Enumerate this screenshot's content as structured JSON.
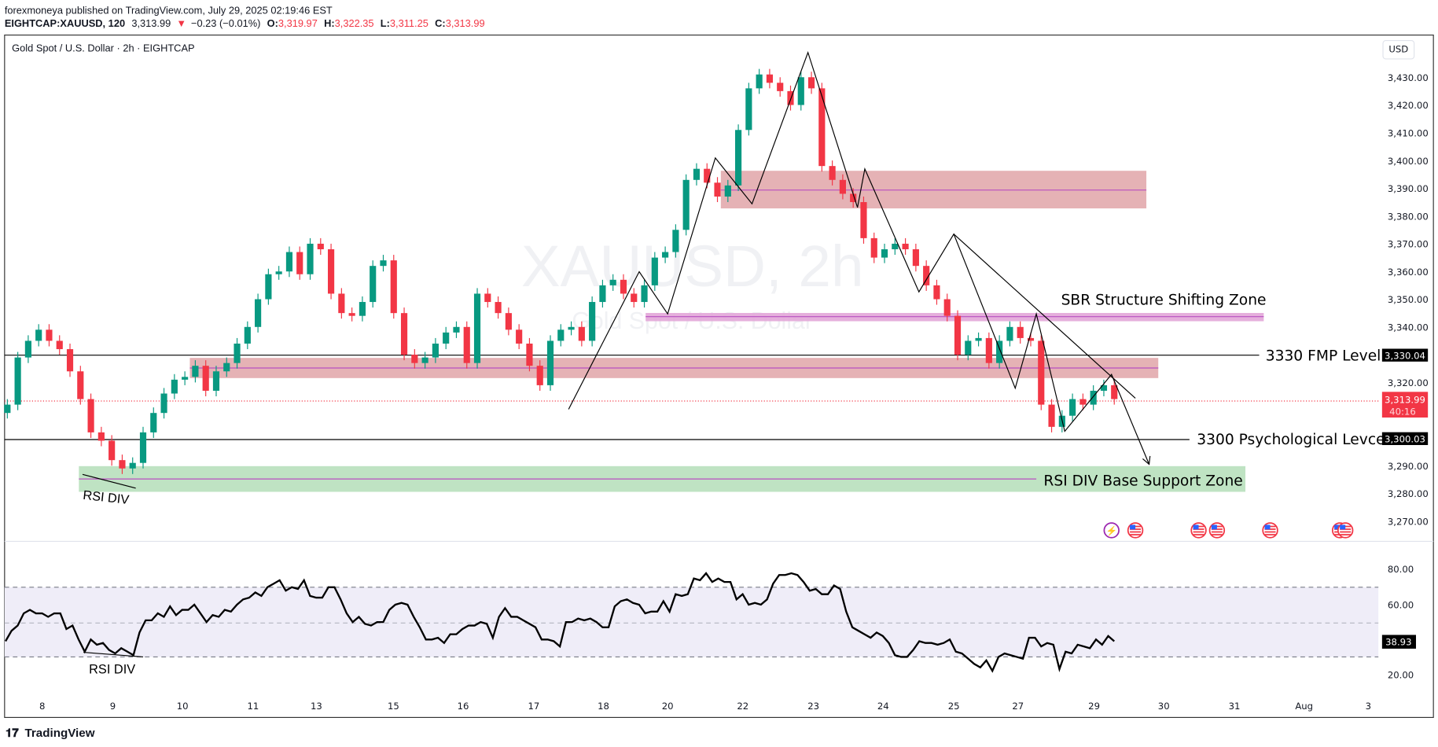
{
  "header": {
    "publisher_line": "forexmoneya published on TradingView.com, July 29, 2025 02:19:46 EST",
    "symbol": "EIGHTCAP:XAUUSD, 120",
    "last": "3,313.99",
    "change": "−0.23 (−0.01%)",
    "o_label": "O:",
    "o": "3,319.97",
    "h_label": "H:",
    "h": "3,322.35",
    "l_label": "L:",
    "l": "3,311.25",
    "c_label": "C:",
    "c": "3,313.99"
  },
  "legend": {
    "title": "Gold Spot / U.S. Dollar · 2h · EIGHTCAP"
  },
  "watermark": {
    "main": "XAUUSD, 2h",
    "sub": "Gold Spot / U.S. Dollar"
  },
  "currency_button": "USD",
  "price_axis": [
    "3,430.00",
    "3,420.00",
    "3,410.00",
    "3,400.00",
    "3,390.00",
    "3,380.00",
    "3,370.00",
    "3,360.00",
    "3,350.00",
    "3,340.00",
    "3,320.00",
    "3,290.00",
    "3,280.00",
    "3,270.00"
  ],
  "price_badges": {
    "fmp": "3,330.04",
    "current": "3,313.99",
    "countdown": "40:16",
    "psych": "3,300.03"
  },
  "rsi_axis": [
    "80.00",
    "60.00",
    "20.00"
  ],
  "rsi_badge": "38.93",
  "time_axis": [
    "8",
    "9",
    "10",
    "11",
    "13",
    "15",
    "16",
    "17",
    "18",
    "20",
    "22",
    "23",
    "24",
    "25",
    "27",
    "29",
    "30",
    "31",
    "Aug",
    "3"
  ],
  "annotations": {
    "sbr": "SBR Structure Shifting Zone",
    "fmp": "3330 FMP Level",
    "psych": "3300 Psychological Levcel",
    "support": "RSI DIV Base Support Zone",
    "rsi_div_price": "RSI DIV",
    "rsi_div_rsi": "RSI DIV"
  },
  "events": [
    "lightning-icon",
    "us-flag-icon",
    "us-flag-icon",
    "us-flag-icon",
    "us-flag-icon",
    "us-flag-icon",
    "us-flag-icon"
  ],
  "footer": {
    "brand": "TradingView"
  },
  "colors": {
    "up": "#089981",
    "down": "#f23645",
    "zone_red": "#e0a5a8",
    "zone_green": "#bfe3c3",
    "zone_purple": "#e2a6d8",
    "rsi_band": "#efedf8"
  },
  "chart_data": [
    {
      "type": "candlestick",
      "title": "Gold Spot / U.S. Dollar · 2h · EIGHTCAP",
      "x_range": [
        "Jul 8",
        "Jul 29"
      ],
      "ylim": [
        3265,
        3440
      ],
      "close": [
        3312,
        3329,
        3335,
        3339,
        3335,
        3332,
        3324,
        3314,
        3302,
        3299,
        3292,
        3289,
        3291,
        3302,
        3309,
        3316,
        3321,
        3322,
        3326,
        3317,
        3324,
        3327,
        3334,
        3340,
        3350,
        3359,
        3360,
        3367,
        3359,
        3370,
        3368,
        3352,
        3345,
        3344,
        3349,
        3362,
        3364,
        3345,
        3330,
        3327,
        3329,
        3334,
        3338,
        3340,
        3327,
        3352,
        3349,
        3345,
        3339,
        3334,
        3326,
        3319,
        3335,
        3339,
        3340,
        3335,
        3349,
        3355,
        3357,
        3352,
        3349,
        3355,
        3365,
        3367,
        3375,
        3393,
        3397,
        3392,
        3387,
        3391,
        3411,
        3426,
        3431,
        3428,
        3425,
        3420,
        3430,
        3426,
        3398,
        3393,
        3388,
        3385,
        3372,
        3365,
        3368,
        3370,
        3368,
        3362,
        3355,
        3350,
        3344,
        3330,
        3335,
        3336,
        3327,
        3335,
        3340,
        3336,
        3335,
        3312,
        3304,
        3308,
        3314,
        3312,
        3317,
        3319,
        3314
      ],
      "levels": [
        {
          "label": "3330 FMP Level",
          "price": 3330.04
        },
        {
          "label": "3300 Psychological Levcel",
          "price": 3300.03
        },
        {
          "label": "current",
          "price": 3313.99
        }
      ],
      "zones": [
        {
          "label": "",
          "from": 3383,
          "to": 3396,
          "color": "#e0a5a8"
        },
        {
          "label": "SBR Structure Shifting Zone",
          "from": 3343,
          "to": 3346,
          "color": "#e2a6d8"
        },
        {
          "label": "",
          "from": 3320,
          "to": 3328,
          "color": "#e0a5a8"
        },
        {
          "label": "RSI DIV Base Support Zone",
          "from": 3281,
          "to": 3290,
          "color": "#bfe3c3"
        }
      ]
    },
    {
      "type": "line",
      "title": "RSI",
      "ylim": [
        10,
        90
      ],
      "bands": [
        30,
        50,
        70
      ],
      "last": 38.93,
      "values": [
        39,
        45,
        48,
        55,
        57,
        55,
        55,
        53,
        55,
        55,
        46,
        48,
        40,
        33,
        40,
        37,
        38,
        34,
        32,
        35,
        33,
        31,
        44,
        51,
        51,
        55,
        53,
        59,
        54,
        57,
        57,
        60,
        55,
        50,
        54,
        53,
        57,
        56,
        60,
        63,
        64,
        67,
        65,
        70,
        72,
        74,
        68,
        70,
        69,
        74,
        65,
        64,
        64,
        70,
        70,
        63,
        55,
        50,
        53,
        49,
        48,
        50,
        50,
        57,
        60,
        61,
        60,
        53,
        47,
        40,
        40,
        41,
        38,
        43,
        43,
        46,
        48,
        48,
        50,
        49,
        41,
        53,
        58,
        53,
        53,
        51,
        49,
        47,
        40,
        40,
        39,
        36,
        50,
        50,
        52,
        51,
        52,
        50,
        47,
        47,
        59,
        62,
        63,
        61,
        60,
        55,
        56,
        56,
        62,
        56,
        66,
        65,
        66,
        75,
        74,
        78,
        73,
        75,
        73,
        73,
        63,
        66,
        60,
        61,
        60,
        63,
        72,
        77,
        77,
        78,
        77,
        73,
        68,
        69,
        66,
        66,
        71,
        69,
        56,
        47,
        45,
        43,
        41,
        44,
        42,
        38,
        31,
        30,
        30,
        34,
        39,
        38,
        38,
        37,
        38,
        40,
        33,
        32,
        29,
        26,
        24,
        28,
        22,
        30,
        32,
        31,
        30,
        29,
        41,
        41,
        36,
        38,
        37,
        23,
        33,
        32,
        37,
        36,
        35,
        40,
        37,
        42,
        39
      ]
    }
  ]
}
